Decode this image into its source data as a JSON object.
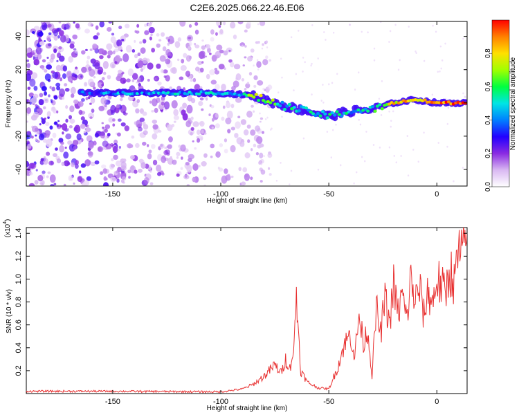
{
  "title": "C2E6.2025.066.22.46.E06",
  "chart_data": [
    {
      "type": "heatmap",
      "xlabel": "Height of straight line (km)",
      "ylabel": "Frequency (Hz)",
      "xlim": [
        -190,
        14
      ],
      "ylim": [
        -50,
        49
      ],
      "x_ticks": [
        -150,
        -100,
        -50,
        0
      ],
      "y_ticks": [
        -40,
        -20,
        0,
        20,
        40
      ],
      "colorbar": {
        "label": "Normalized spectral amplitude",
        "range": [
          0,
          1
        ],
        "ticks": [
          0.0,
          0.2,
          0.4,
          0.6,
          0.8
        ],
        "tick_labels": [
          "0.0",
          "0.2",
          "0.4",
          "0.6",
          "0.8"
        ],
        "colormap": [
          "#ffffff",
          "#d9b8f2",
          "#8a2be2",
          "#2200ff",
          "#0080ff",
          "#00e5e5",
          "#00ff40",
          "#a0ff00",
          "#ffe000",
          "#ff8000",
          "#ff0000"
        ]
      },
      "ridge": {
        "description_points_x": [
          -165,
          -140,
          -120,
          -100,
          -90,
          -85,
          -80,
          -70,
          -60,
          -50,
          -40,
          -30,
          -20,
          -10,
          0,
          14
        ],
        "description_points_y": [
          6,
          6,
          6,
          6,
          5,
          4,
          2,
          -2,
          -5,
          -8,
          -5,
          -4,
          0,
          2,
          0,
          0
        ],
        "amplitude": [
          0.35,
          0.4,
          0.45,
          0.45,
          0.5,
          0.65,
          0.7,
          0.5,
          0.45,
          0.55,
          0.45,
          0.5,
          0.8,
          0.85,
          0.9,
          0.9
        ]
      },
      "noise_region_x": [
        -190,
        -85
      ]
    },
    {
      "type": "line",
      "xlabel": "Height of straight line (km)",
      "ylabel": "SNR (10 * v/v)",
      "y_exponent_label": "(x10",
      "y_exponent": "4",
      "xlim": [
        -190,
        14
      ],
      "ylim": [
        0,
        14500
      ],
      "x_ticks": [
        -150,
        -100,
        -50,
        0
      ],
      "y_ticks": [
        2000,
        4000,
        6000,
        8000,
        10000,
        12000,
        14000
      ],
      "y_tick_labels": [
        "0.2",
        "0.4",
        "0.6",
        "0.8",
        "1.0",
        "1.2",
        "1.4"
      ],
      "series": [
        {
          "color": "#e83030",
          "x": [
            -190,
            -150,
            -100,
            -90,
            -85,
            -80,
            -75,
            -72,
            -70,
            -68,
            -66,
            -65,
            -63,
            -60,
            -55,
            -50,
            -46,
            -43,
            -40,
            -38,
            -36,
            -34,
            -32,
            -30,
            -28,
            -26,
            -24,
            -22,
            -20,
            -18,
            -16,
            -14,
            -12,
            -10,
            -8,
            -6,
            -4,
            -2,
            0,
            2,
            4,
            6,
            8,
            10,
            12,
            14
          ],
          "y": [
            200,
            200,
            150,
            400,
            800,
            1500,
            2500,
            1800,
            3000,
            2200,
            4200,
            8600,
            2000,
            1000,
            500,
            400,
            2200,
            4200,
            5200,
            3200,
            6800,
            4400,
            5600,
            1600,
            7400,
            5200,
            8300,
            6100,
            9400,
            7000,
            8600,
            6400,
            10000,
            8000,
            9200,
            6800,
            9000,
            7800,
            10100,
            9300,
            8700,
            11000,
            9500,
            12400,
            11900,
            14000
          ]
        }
      ]
    }
  ]
}
